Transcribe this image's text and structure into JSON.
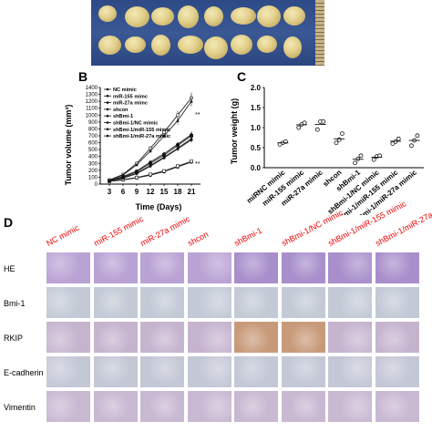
{
  "panel_labels": {
    "b": "B",
    "c": "C",
    "d": "D"
  },
  "chartB": {
    "ylabel": "Tumor volume (mm³)",
    "xlabel": "Time (Days)",
    "legend": [
      "NC mimic",
      "miR-155 mimc",
      "miR-27a mimc",
      "shcon",
      "shBmi-1",
      "shBmi-1/NC mimic",
      "shBmi-1/miR-155 mimic",
      "shBmi-1/miR-27a mimic"
    ],
    "sig_top": "**",
    "sig_bottom": "**"
  },
  "chart_data": [
    {
      "type": "line",
      "x": [
        3,
        6,
        9,
        12,
        15,
        18,
        21
      ],
      "xticks": [
        "3",
        "6",
        "9",
        "12",
        "15",
        "18",
        "21"
      ],
      "yticks": [
        "0",
        "100",
        "200",
        "300",
        "400",
        "500",
        "600",
        "700",
        "800",
        "900",
        "1000",
        "1100",
        "1200",
        "1300",
        "1400"
      ],
      "xlabel": "Time (Days)",
      "ylabel": "Tumor volume (mm³)",
      "ylim": [
        0,
        1400
      ],
      "xlim": [
        1,
        23
      ],
      "series": [
        {
          "name": "NC mimic",
          "values": [
            50,
            100,
            180,
            300,
            420,
            560,
            700
          ]
        },
        {
          "name": "miR-155 mimc",
          "values": [
            60,
            140,
            300,
            520,
            750,
            1000,
            1250
          ]
        },
        {
          "name": "miR-27a mimc",
          "values": [
            55,
            130,
            280,
            480,
            700,
            920,
            1200
          ]
        },
        {
          "name": "shcon",
          "values": [
            50,
            110,
            190,
            320,
            440,
            580,
            720
          ]
        },
        {
          "name": "shBmi-1",
          "values": [
            40,
            60,
            90,
            130,
            180,
            250,
            320
          ]
        },
        {
          "name": "shBmi-1/NC mimic",
          "values": [
            40,
            65,
            95,
            140,
            190,
            260,
            330
          ]
        },
        {
          "name": "shBmi-1/miR-155 mimic",
          "values": [
            45,
            90,
            160,
            270,
            390,
            520,
            660
          ]
        },
        {
          "name": "shBmi-1/miR-27a mimic",
          "values": [
            45,
            85,
            150,
            260,
            380,
            510,
            640
          ]
        }
      ],
      "legend_position": "top-left",
      "grid": false
    },
    {
      "type": "scatter",
      "ylabel": "Tumor weight (g)",
      "yticks": [
        "0.0",
        "0.5",
        "1.0",
        "1.5",
        "2.0"
      ],
      "ylim": [
        0,
        2.0
      ],
      "categories": [
        "miRNC mimic",
        "miR-155 mimic",
        "miR-27a mimic",
        "shcon",
        "shBmi-1",
        "shBmi-1/NC mimic",
        "shBmi-1/miR-155 mimic",
        "shBmi-1/miR-27a mimic"
      ],
      "points": [
        [
          0.58,
          0.62,
          0.65
        ],
        [
          1.0,
          1.08,
          1.12
        ],
        [
          0.95,
          1.15,
          1.15
        ],
        [
          0.62,
          0.7,
          0.85
        ],
        [
          0.12,
          0.22,
          0.3
        ],
        [
          0.2,
          0.28,
          0.3
        ],
        [
          0.6,
          0.65,
          0.72
        ],
        [
          0.55,
          0.68,
          0.8
        ]
      ],
      "means": [
        0.62,
        1.07,
        1.08,
        0.72,
        0.21,
        0.26,
        0.66,
        0.68
      ]
    }
  ],
  "panelD": {
    "columns": [
      "NC mimic",
      "miR-155 mimic",
      "miR-27a mimic",
      "shcon",
      "shBmi-1",
      "shBmi-1/NC mimic",
      "shBmi-1/miR-155 mimic",
      "shBmi-1/miR-27a mimic"
    ],
    "rows": [
      "HE",
      "Bmi-1",
      "RKIP",
      "E-cadherin",
      "Vimentin"
    ],
    "colors": {
      "HE": "#b9a2d4",
      "Bmi-1": "#c3cad6",
      "RKIP": "#c6b4cf",
      "E-cadherin": "#c4c8d6",
      "Vimentin": "#c8b8d2"
    }
  }
}
